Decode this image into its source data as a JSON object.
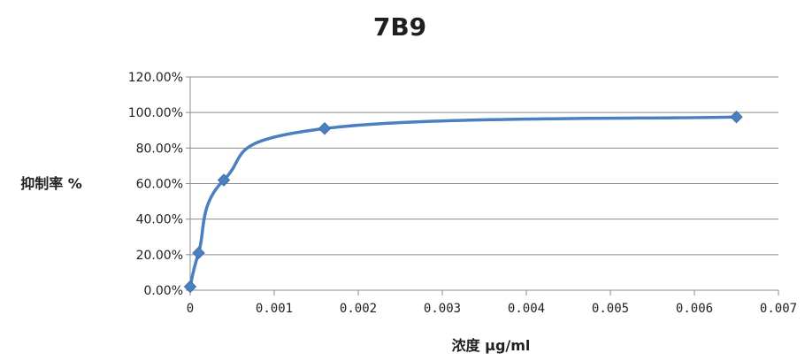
{
  "chart_data": {
    "type": "line",
    "title": "7B9",
    "xlabel": "浓度 µg/ml",
    "ylabel": "抑制率 %",
    "xlim": [
      0,
      0.007
    ],
    "ylim": [
      0,
      1.2
    ],
    "x_ticks": [
      "0",
      "0.001",
      "0.002",
      "0.003",
      "0.004",
      "0.005",
      "0.006",
      "0.007"
    ],
    "y_ticks": [
      "0.00%",
      "20.00%",
      "40.00%",
      "60.00%",
      "80.00%",
      "100.00%",
      "120.00%"
    ],
    "grid": "horizontal",
    "legend": "none",
    "series": [
      {
        "x": [
          0,
          0.0001,
          0.0004,
          0.0016,
          0.0065
        ],
        "y": [
          0.02,
          0.21,
          0.62,
          0.91,
          0.975
        ],
        "color": "#4a7fc0"
      }
    ]
  }
}
